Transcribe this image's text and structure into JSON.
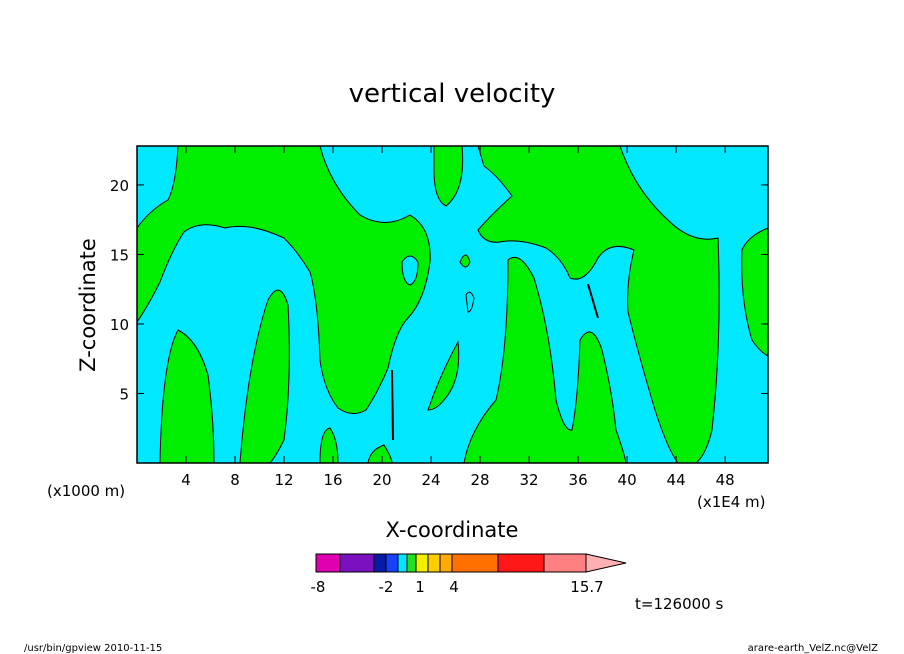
{
  "chart_data": {
    "type": "heatmap",
    "title": "vertical velocity",
    "xlabel": "X-coordinate",
    "ylabel": "Z-coordinate",
    "x_unit_left": "(x1000 m)",
    "x_unit_right": "(x1E4 m)",
    "xlim": [
      0,
      51.5
    ],
    "ylim": [
      0,
      22.8
    ],
    "x_ticks": [
      "4",
      "8",
      "12",
      "16",
      "20",
      "24",
      "28",
      "32",
      "36",
      "40",
      "44",
      "48"
    ],
    "y_ticks": [
      "5",
      "10",
      "15",
      "20"
    ],
    "time_label": "t=126000 s",
    "colorbar": {
      "labels": [
        "-8",
        "-2",
        "1",
        "4",
        "15.7"
      ],
      "colors": [
        "#e000b0",
        "#7a10c0",
        "#0a1aa8",
        "#1840ff",
        "#00e8ff",
        "#20e020",
        "#f0f000",
        "#ffcc00",
        "#ffaa00",
        "#ff7000",
        "#ff1818",
        "#ff8080",
        "#ffb0b0"
      ]
    },
    "fill_colors": {
      "negative": "#00e8ff",
      "positive": "#00ee00"
    }
  },
  "footer": {
    "left": "/usr/bin/gpview   2010-11-15",
    "right": "arare-earth_VelZ.nc@VelZ"
  }
}
